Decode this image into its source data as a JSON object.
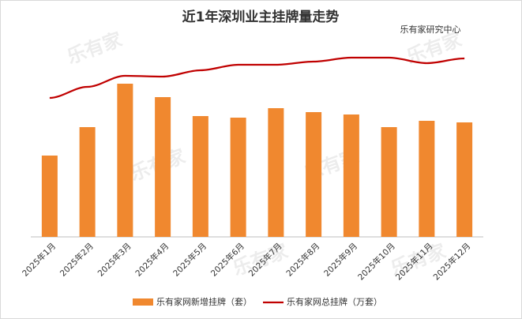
{
  "chart_data": {
    "type": "bar-line",
    "title": "近1年深圳业主挂牌量走势",
    "source": "乐有家研究中心",
    "watermark": "乐有家",
    "categories": [
      "2025年1月",
      "2025年2月",
      "2025年3月",
      "2025年4月",
      "2025年5月",
      "2025年6月",
      "2025年7月",
      "2025年8月",
      "2025年9月",
      "2025年10月",
      "2025年11月",
      "2025年12月"
    ],
    "series": [
      {
        "name": "乐有家网新增挂牌（套）",
        "type": "bar",
        "color": "#f0882f",
        "values": [
          103,
          139,
          194,
          177,
          153,
          151,
          163,
          158,
          155,
          139,
          147,
          145
        ]
      },
      {
        "name": "乐有家网总挂牌（万套）",
        "type": "line",
        "axis": "y2",
        "color": "#c00000",
        "values": [
          176,
          190,
          204,
          203,
          211,
          218,
          218,
          222,
          227,
          227,
          220,
          226
        ]
      }
    ],
    "ylim": [
      0,
      250
    ],
    "y2lim": [
      0,
      250
    ]
  }
}
